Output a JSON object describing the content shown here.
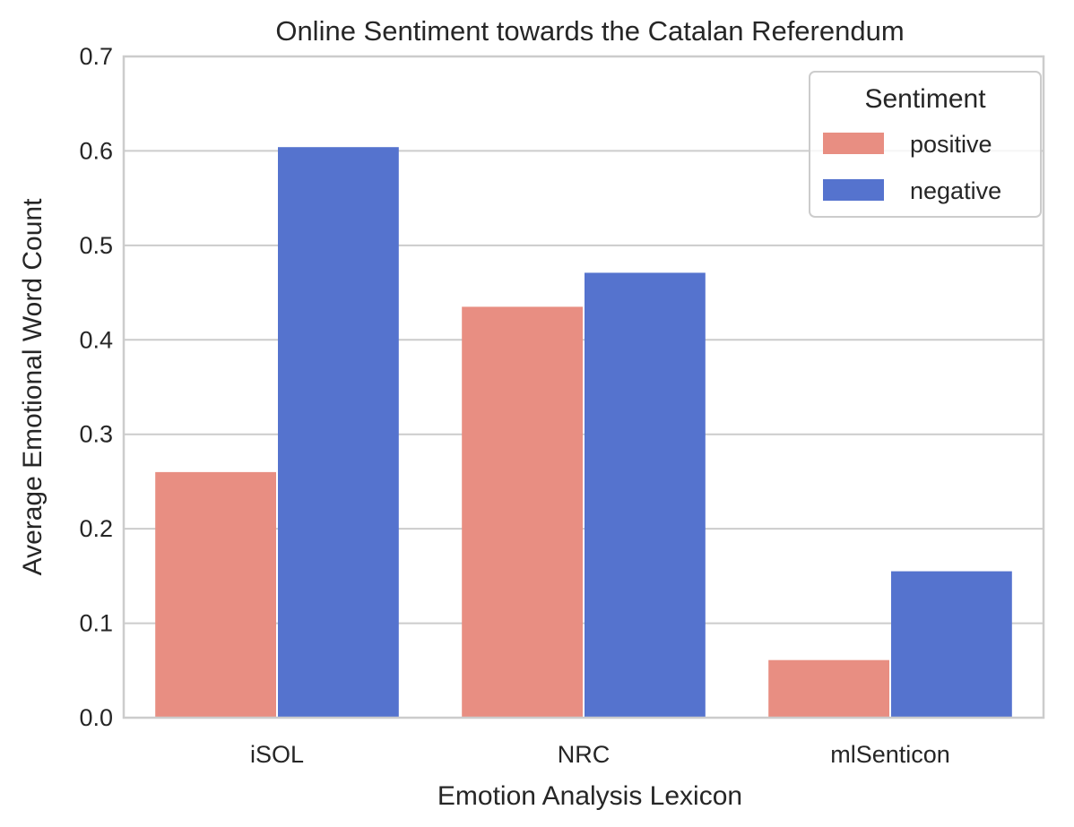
{
  "chart_data": {
    "type": "bar",
    "title": "Online Sentiment towards the Catalan Referendum",
    "xlabel": "Emotion Analysis Lexicon",
    "ylabel": "Average Emotional Word Count",
    "categories": [
      "iSOL",
      "NRC",
      "mlSenticon"
    ],
    "series": [
      {
        "name": "positive",
        "color": "#E88E82",
        "values": [
          0.26,
          0.435,
          0.061
        ]
      },
      {
        "name": "negative",
        "color": "#5573CE",
        "values": [
          0.604,
          0.471,
          0.155
        ]
      }
    ],
    "ylim": [
      0,
      0.7
    ],
    "yticks": [
      "0.0",
      "0.1",
      "0.2",
      "0.3",
      "0.4",
      "0.5",
      "0.6",
      "0.7"
    ],
    "grid": "horizontal",
    "legend": {
      "title": "Sentiment",
      "placement": "top-right"
    }
  }
}
